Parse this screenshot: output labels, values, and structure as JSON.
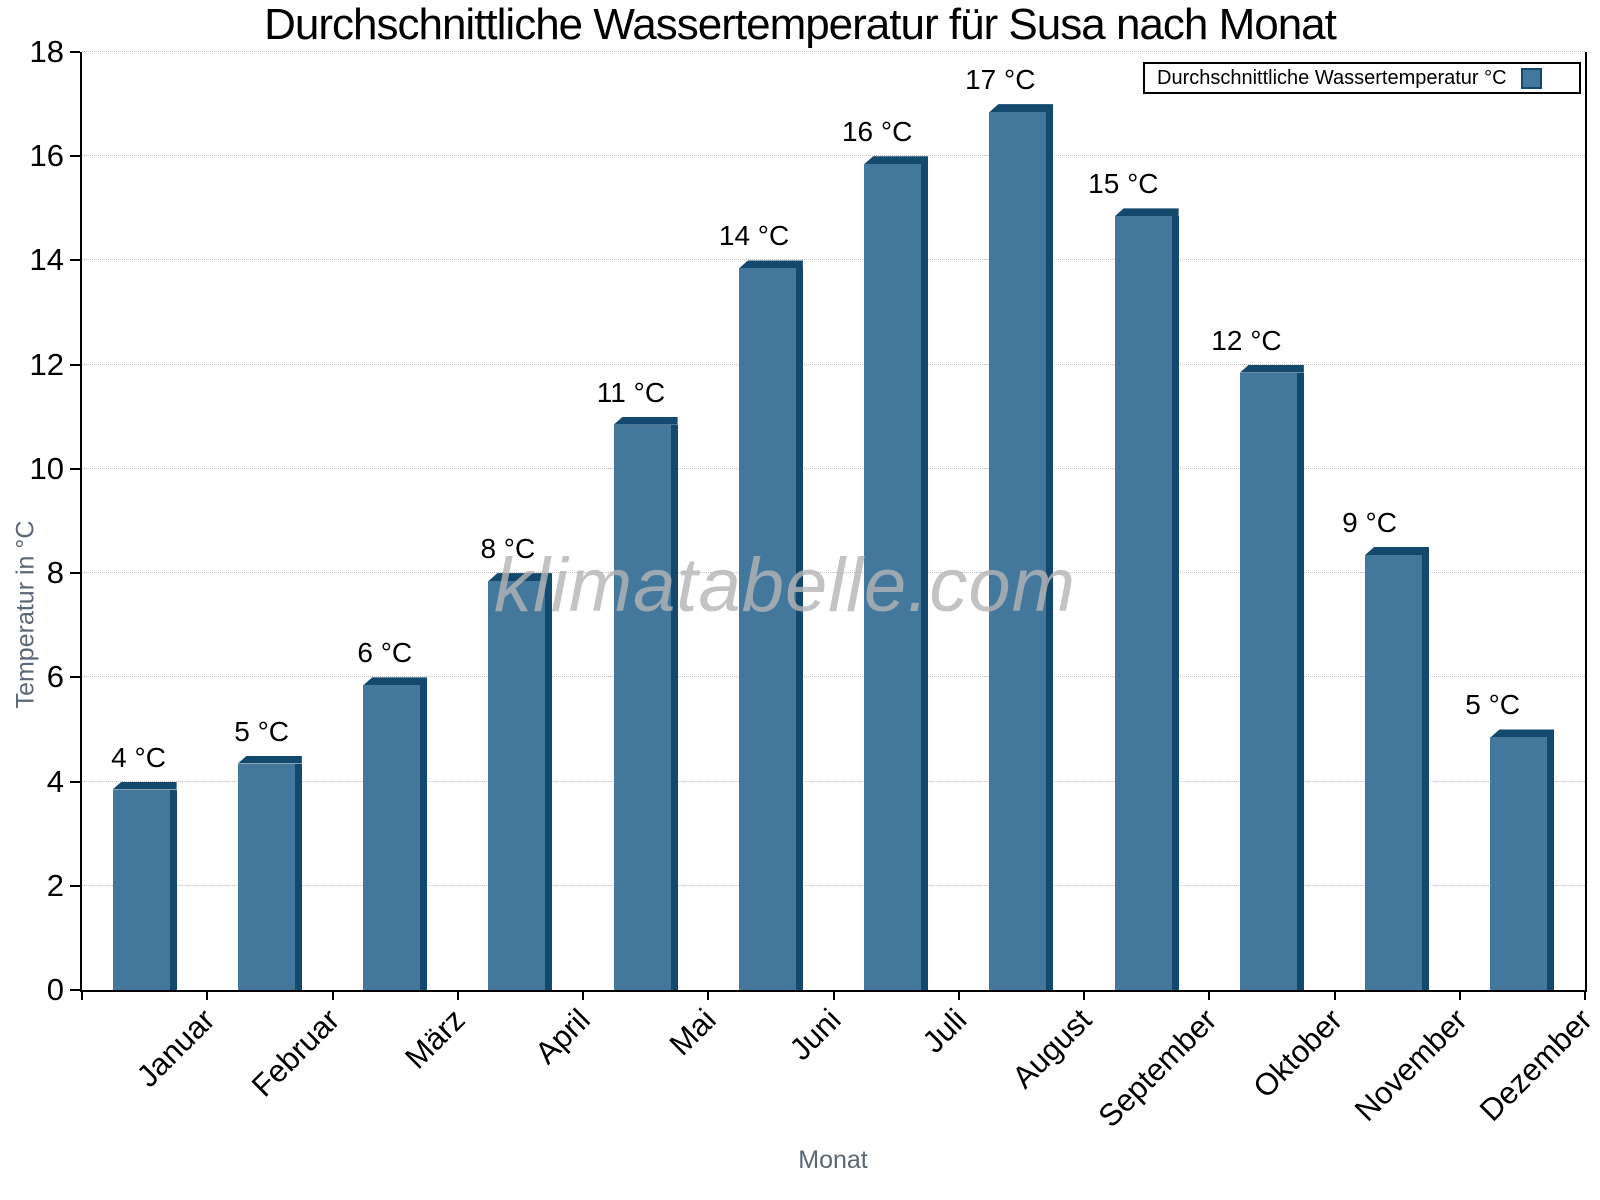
{
  "title": "Durchschnittliche Wassertemperatur für Susa nach Monat",
  "legend": {
    "label": "Durchschnittliche Wassertemperatur °C",
    "swatch": "bar-color-swatch"
  },
  "watermark": "klimatabelle.com",
  "chart_data": {
    "type": "bar",
    "title": "Durchschnittliche Wassertemperatur für Susa nach Monat",
    "xlabel": "Monat",
    "ylabel": "Temperatur in °C",
    "categories": [
      "Januar",
      "Februar",
      "März",
      "April",
      "Mai",
      "Juni",
      "Juli",
      "August",
      "September",
      "Oktober",
      "November",
      "Dezember"
    ],
    "values": [
      4,
      4.5,
      6,
      8,
      11,
      14,
      16,
      17,
      15,
      12,
      8.5,
      5
    ],
    "bar_labels": [
      "4 °C",
      "5 °C",
      "6 °C",
      "8 °C",
      "11 °C",
      "14 °C",
      "16 °C",
      "17 °C",
      "15 °C",
      "12 °C",
      "9 °C",
      "5 °C"
    ],
    "series_name": "Durchschnittliche Wassertemperatur °C",
    "ylim": [
      0,
      18
    ],
    "ytick_step": 2,
    "grid": "horizontal-dotted",
    "legend_position": "top-right",
    "colors": {
      "bar_face": "#44779c",
      "bar_edge": "#14496e",
      "grid": "#bdbdbd",
      "axis": "#000000",
      "axis_title": "#5a6774",
      "watermark": "#b5b5b5"
    }
  }
}
